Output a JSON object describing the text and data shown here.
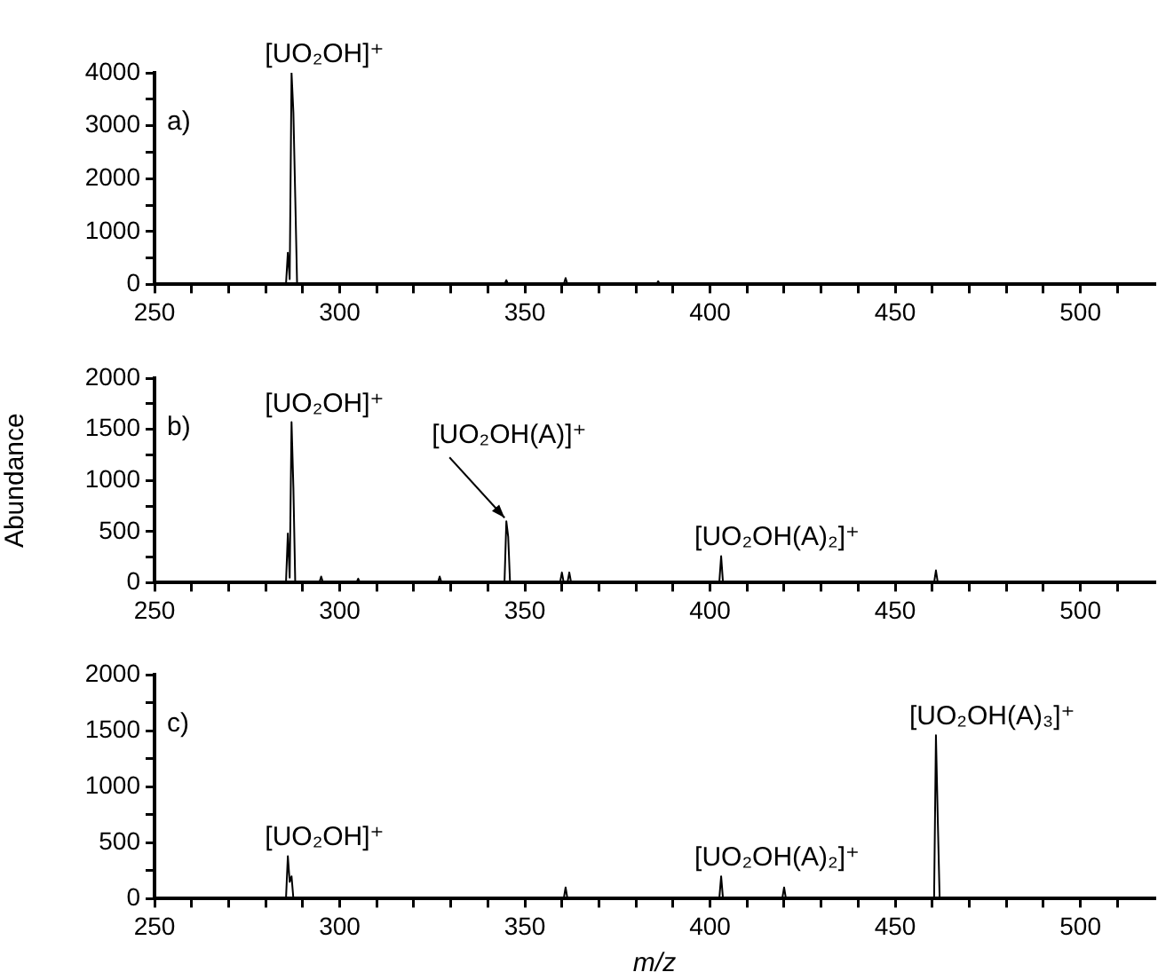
{
  "chart_data": [
    {
      "type": "line",
      "annotations": [
        "a)",
        {
          "text": "[UO₂OH]⁺",
          "x": 287,
          "y": 4000
        }
      ],
      "series": [
        {
          "color": "#000000",
          "x": [
            250,
            285.5,
            286,
            286.5,
            287,
            287.5,
            288,
            288.5,
            344.5,
            345,
            345.5,
            360.5,
            361,
            361.5,
            385.5,
            386,
            386.5,
            520
          ],
          "values": [
            0,
            0,
            600,
            100,
            4000,
            3250,
            1650,
            0,
            0,
            80,
            0,
            0,
            120,
            0,
            0,
            60,
            0,
            0
          ]
        }
      ],
      "xlim": [
        250,
        520
      ],
      "ylim": [
        0,
        4000
      ],
      "xticks": [
        250,
        {
          "value": 260,
          "label": null
        },
        {
          "value": 270,
          "label": null
        },
        {
          "value": 280,
          "label": null
        },
        {
          "value": 290,
          "label": null
        },
        300,
        {
          "value": 310,
          "label": null
        },
        {
          "value": 320,
          "label": null
        },
        {
          "value": 330,
          "label": null
        },
        {
          "value": 340,
          "label": null
        },
        350,
        {
          "value": 360,
          "label": null
        },
        {
          "value": 370,
          "label": null
        },
        {
          "value": 380,
          "label": null
        },
        {
          "value": 390,
          "label": null
        },
        400,
        {
          "value": 410,
          "label": null
        },
        {
          "value": 420,
          "label": null
        },
        {
          "value": 430,
          "label": null
        },
        {
          "value": 440,
          "label": null
        },
        450,
        {
          "value": 460,
          "label": null
        },
        {
          "value": 470,
          "label": null
        },
        {
          "value": 480,
          "label": null
        },
        {
          "value": 490,
          "label": null
        },
        500,
        {
          "value": 510,
          "label": null
        }
      ],
      "yticks": [
        0,
        {
          "value": 500,
          "label": null
        },
        1000,
        {
          "value": 1500,
          "label": null
        },
        2000,
        {
          "value": 2500,
          "label": null
        },
        3000,
        {
          "value": 3500,
          "label": null
        },
        4000
      ],
      "grid": false,
      "legend": false,
      "marker": "none",
      "line_style": "solid"
    },
    {
      "type": "line",
      "ylabel": "Abundance",
      "annotations": [
        "b)",
        {
          "text": "[UO₂OH]⁺",
          "x": 287,
          "y": 1570
        },
        {
          "text": "[UO₂OH(A)]⁺",
          "x": 345,
          "y": 600
        },
        {
          "text": "[UO₂OH(A)₂]⁺",
          "x": 403,
          "y": 260
        }
      ],
      "series": [
        {
          "color": "#000000",
          "x": [
            250,
            285.5,
            286,
            286.5,
            287,
            287.5,
            288,
            294.5,
            295,
            295.5,
            304.5,
            305,
            305.5,
            326.5,
            327,
            327.5,
            344.5,
            345,
            345.5,
            346,
            359.5,
            360,
            360.5,
            361.5,
            362,
            362.5,
            402.5,
            403,
            403.5,
            460.5,
            461,
            461.5,
            520
          ],
          "values": [
            0,
            0,
            480,
            50,
            1570,
            930,
            0,
            0,
            60,
            0,
            0,
            40,
            0,
            0,
            60,
            0,
            0,
            600,
            450,
            0,
            0,
            100,
            0,
            0,
            100,
            0,
            0,
            260,
            0,
            0,
            120,
            0,
            0
          ]
        }
      ],
      "xlim": [
        250,
        520
      ],
      "ylim": [
        0,
        2000
      ],
      "xticks": [
        250,
        {
          "value": 260,
          "label": null
        },
        {
          "value": 270,
          "label": null
        },
        {
          "value": 280,
          "label": null
        },
        {
          "value": 290,
          "label": null
        },
        300,
        {
          "value": 310,
          "label": null
        },
        {
          "value": 320,
          "label": null
        },
        {
          "value": 330,
          "label": null
        },
        {
          "value": 340,
          "label": null
        },
        350,
        {
          "value": 360,
          "label": null
        },
        {
          "value": 370,
          "label": null
        },
        {
          "value": 380,
          "label": null
        },
        {
          "value": 390,
          "label": null
        },
        400,
        {
          "value": 410,
          "label": null
        },
        {
          "value": 420,
          "label": null
        },
        {
          "value": 430,
          "label": null
        },
        {
          "value": 440,
          "label": null
        },
        450,
        {
          "value": 460,
          "label": null
        },
        {
          "value": 470,
          "label": null
        },
        {
          "value": 480,
          "label": null
        },
        {
          "value": 490,
          "label": null
        },
        500,
        {
          "value": 510,
          "label": null
        }
      ],
      "yticks": [
        0,
        {
          "value": 250,
          "label": null
        },
        500,
        {
          "value": 750,
          "label": null
        },
        1000,
        {
          "value": 1250,
          "label": null
        },
        1500,
        {
          "value": 1750,
          "label": null
        },
        2000
      ],
      "grid": false,
      "legend": false,
      "marker": "none",
      "line_style": "solid"
    },
    {
      "type": "line",
      "xlabel": "m/z",
      "annotations": [
        "c)",
        {
          "text": "[UO₂OH]⁺",
          "x": 287,
          "y": 380
        },
        {
          "text": "[UO₂OH(A)₂]⁺",
          "x": 403,
          "y": 200
        },
        {
          "text": "[UO₂OH(A)₃]⁺",
          "x": 461,
          "y": 1460
        }
      ],
      "series": [
        {
          "color": "#000000",
          "x": [
            250,
            285.5,
            286,
            286.5,
            287,
            287.5,
            360.5,
            361,
            361.5,
            402.5,
            403,
            403.5,
            419.5,
            420,
            420.5,
            460.5,
            461,
            461.5,
            462,
            520
          ],
          "values": [
            0,
            0,
            380,
            150,
            200,
            0,
            0,
            100,
            0,
            0,
            200,
            0,
            0,
            100,
            0,
            0,
            1460,
            700,
            0,
            0
          ]
        }
      ],
      "xlim": [
        250,
        520
      ],
      "ylim": [
        0,
        2000
      ],
      "xticks": [
        250,
        {
          "value": 260,
          "label": null
        },
        {
          "value": 270,
          "label": null
        },
        {
          "value": 280,
          "label": null
        },
        {
          "value": 290,
          "label": null
        },
        300,
        {
          "value": 310,
          "label": null
        },
        {
          "value": 320,
          "label": null
        },
        {
          "value": 330,
          "label": null
        },
        {
          "value": 340,
          "label": null
        },
        350,
        {
          "value": 360,
          "label": null
        },
        {
          "value": 370,
          "label": null
        },
        {
          "value": 380,
          "label": null
        },
        {
          "value": 390,
          "label": null
        },
        400,
        {
          "value": 410,
          "label": null
        },
        {
          "value": 420,
          "label": null
        },
        {
          "value": 430,
          "label": null
        },
        {
          "value": 440,
          "label": null
        },
        450,
        {
          "value": 460,
          "label": null
        },
        {
          "value": 470,
          "label": null
        },
        {
          "value": 480,
          "label": null
        },
        {
          "value": 490,
          "label": null
        },
        500,
        {
          "value": 510,
          "label": null
        }
      ],
      "yticks": [
        0,
        {
          "value": 250,
          "label": null
        },
        500,
        {
          "value": 750,
          "label": null
        },
        1000,
        {
          "value": 1250,
          "label": null
        },
        1500,
        {
          "value": 1750,
          "label": null
        },
        2000
      ],
      "grid": false,
      "legend": false,
      "marker": "none",
      "line_style": "solid"
    }
  ]
}
